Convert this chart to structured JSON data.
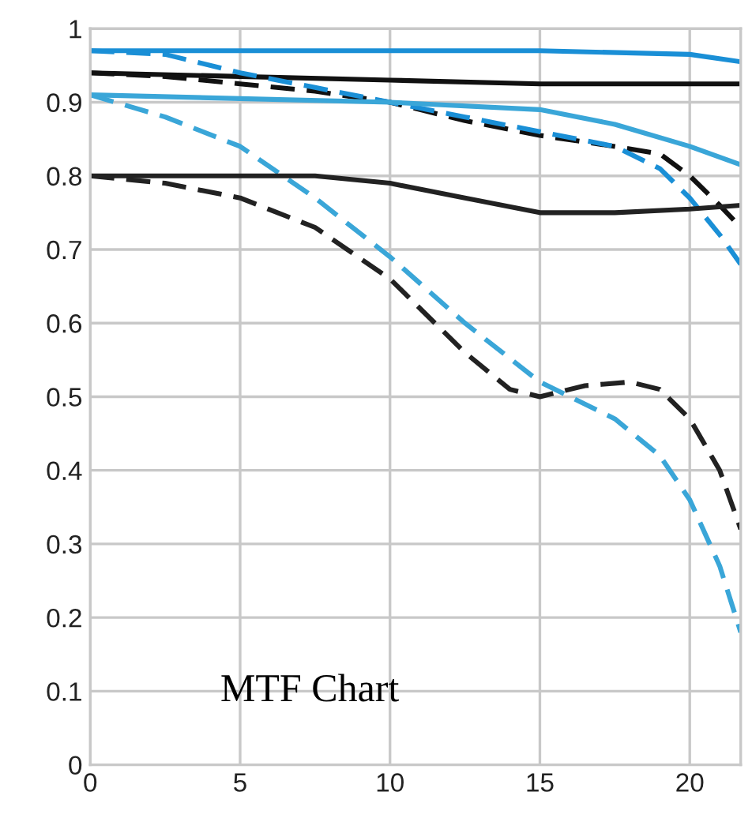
{
  "chart_data": {
    "type": "line",
    "annotations": [
      "MTF Chart"
    ],
    "xlim": [
      0,
      21.7
    ],
    "xticks": [
      0,
      5,
      10,
      15,
      20
    ],
    "ylim": [
      0,
      1
    ],
    "yticks": [
      0,
      0.1,
      0.2,
      0.3,
      0.4,
      0.5,
      0.6,
      0.7,
      0.8,
      0.9,
      1
    ],
    "grid": true,
    "legend": false,
    "marker": "none",
    "series": [
      {
        "color": "#1a8fd6",
        "line_style": "solid",
        "x": [
          0,
          5,
          10,
          15,
          20,
          21.7
        ],
        "values": [
          0.97,
          0.97,
          0.97,
          0.97,
          0.965,
          0.955
        ]
      },
      {
        "color": "#111111",
        "line_style": "solid",
        "x": [
          0,
          5,
          10,
          15,
          20,
          21.7
        ],
        "values": [
          0.94,
          0.935,
          0.93,
          0.925,
          0.925,
          0.925
        ]
      },
      {
        "color": "#111111",
        "line_style": "dashed",
        "x": [
          0,
          2.5,
          5,
          7.5,
          10,
          12.5,
          15,
          17.5,
          19,
          20,
          21,
          21.7
        ],
        "values": [
          0.94,
          0.935,
          0.925,
          0.915,
          0.9,
          0.875,
          0.855,
          0.84,
          0.83,
          0.8,
          0.76,
          0.73
        ]
      },
      {
        "color": "#1a8fd6",
        "line_style": "dashed",
        "x": [
          0,
          2.5,
          5,
          7.5,
          10,
          12.5,
          15,
          17.5,
          19,
          20,
          21,
          21.7
        ],
        "values": [
          0.97,
          0.965,
          0.94,
          0.92,
          0.9,
          0.88,
          0.86,
          0.84,
          0.81,
          0.77,
          0.72,
          0.68
        ]
      },
      {
        "color": "#3aa6d8",
        "line_style": "solid",
        "x": [
          0,
          5,
          10,
          15,
          17.5,
          20,
          21.7
        ],
        "values": [
          0.91,
          0.905,
          0.9,
          0.89,
          0.87,
          0.84,
          0.815
        ]
      },
      {
        "color": "#3aa6d8",
        "line_style": "dashed",
        "x": [
          0,
          2.5,
          5,
          7.5,
          10,
          12.5,
          15,
          17.5,
          19,
          20,
          21,
          21.7
        ],
        "values": [
          0.91,
          0.88,
          0.84,
          0.77,
          0.69,
          0.6,
          0.52,
          0.47,
          0.42,
          0.36,
          0.27,
          0.18
        ]
      },
      {
        "color": "#222222",
        "line_style": "solid",
        "x": [
          0,
          2.5,
          5,
          7.5,
          10,
          12.5,
          15,
          17.5,
          20,
          21.7
        ],
        "values": [
          0.8,
          0.8,
          0.8,
          0.8,
          0.79,
          0.77,
          0.75,
          0.75,
          0.755,
          0.76
        ]
      },
      {
        "color": "#222222",
        "line_style": "dashed",
        "x": [
          0,
          2.5,
          5,
          7.5,
          10,
          12.5,
          14,
          15,
          16.5,
          18,
          19,
          20,
          21,
          21.7
        ],
        "values": [
          0.8,
          0.79,
          0.77,
          0.73,
          0.66,
          0.56,
          0.51,
          0.5,
          0.515,
          0.52,
          0.51,
          0.47,
          0.4,
          0.32
        ]
      }
    ]
  }
}
